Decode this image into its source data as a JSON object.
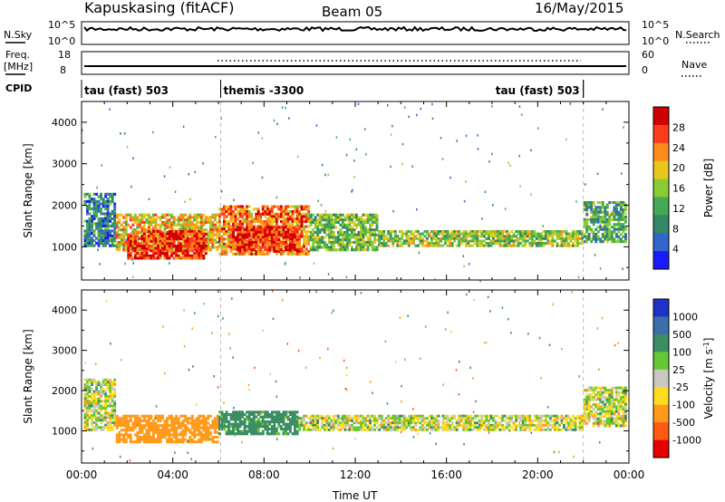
{
  "header": {
    "station": "Kapuskasing (fitACF)",
    "beam": "Beam 05",
    "date": "16/May/2015"
  },
  "left_labels": {
    "nsky": "N.Sky",
    "nsky_hi": "10^5",
    "nsky_lo": "10^0",
    "freq_1": "Freq.",
    "freq_2": "[MHz]",
    "freq_hi": "18",
    "freq_lo": "8",
    "cpid": "CPID"
  },
  "right_labels": {
    "nsearch": "N.Search",
    "nsearch_hi": "10^5",
    "nsearch_lo": "10^0",
    "nave": "Nave",
    "nave_hi": "60",
    "nave_lo": "0"
  },
  "cpid_segments": [
    {
      "start": 0,
      "end": 6.1,
      "label": "tau (fast) 503",
      "align": "left"
    },
    {
      "start": 6.1,
      "end": 22.0,
      "label": "themis -3300",
      "align": "left"
    },
    {
      "start": 6.1,
      "end": 22.0,
      "label": "tau (fast) 503",
      "align": "right"
    }
  ],
  "chart_data": [
    {
      "type": "heatmap",
      "name": "power",
      "ylabel": "Slant Range [km]",
      "xlabel": "Time UT",
      "xlim": [
        0,
        24
      ],
      "ylim": [
        200,
        4500
      ],
      "yticks": [
        1000,
        2000,
        3000,
        4000
      ],
      "xticks": [
        "00:00",
        "04:00",
        "08:00",
        "12:00",
        "16:00",
        "20:00",
        "00:00"
      ],
      "colorbar": {
        "label": "Power [dB]",
        "ticks": [
          "4",
          "8",
          "12",
          "16",
          "20",
          "24",
          "28"
        ],
        "colors": [
          "#1a1aff",
          "#3366cc",
          "#338866",
          "#44aa55",
          "#88cc33",
          "#e8c81c",
          "#ff8c1a",
          "#ff3c1a",
          "#d10000"
        ]
      },
      "regions": [
        {
          "t0": 0.1,
          "t1": 1.5,
          "r0": 1000,
          "r1": 2300,
          "value": 8
        },
        {
          "t0": 1.5,
          "t1": 6.0,
          "r0": 900,
          "r1": 1800,
          "value": 20
        },
        {
          "t0": 2.0,
          "t1": 5.5,
          "r0": 700,
          "r1": 1400,
          "value": 28
        },
        {
          "t0": 6.0,
          "t1": 10.0,
          "r0": 800,
          "r1": 2000,
          "value": 24
        },
        {
          "t0": 6.5,
          "t1": 9.5,
          "r0": 900,
          "r1": 1500,
          "value": 28
        },
        {
          "t0": 10.0,
          "t1": 13.0,
          "r0": 900,
          "r1": 1800,
          "value": 14
        },
        {
          "t0": 13.0,
          "t1": 22.0,
          "r0": 1000,
          "r1": 1400,
          "value": 16
        },
        {
          "t0": 22.0,
          "t1": 23.9,
          "r0": 1100,
          "r1": 2100,
          "value": 12
        }
      ]
    },
    {
      "type": "heatmap",
      "name": "velocity",
      "ylabel": "Slant Range [km]",
      "xlabel": "Time UT",
      "xlim": [
        0,
        24
      ],
      "ylim": [
        200,
        4500
      ],
      "yticks": [
        1000,
        2000,
        3000,
        4000
      ],
      "xticks": [
        "00:00",
        "04:00",
        "08:00",
        "12:00",
        "16:00",
        "20:00",
        "00:00"
      ],
      "colorbar": {
        "label": "Velocity [m s",
        "label_sup": "-1",
        "label_end": "]",
        "ticks": [
          "1000",
          "500",
          "100",
          "25",
          "-25",
          "-100",
          "-500",
          "-1000"
        ],
        "colors": [
          "#1e32c8",
          "#3c6eaa",
          "#3c8c64",
          "#64c832",
          "#c8c8c0",
          "#ffdc1e",
          "#ff9a1a",
          "#ff5a14",
          "#e60000"
        ]
      },
      "regions": [
        {
          "t0": 0.1,
          "t1": 1.5,
          "r0": 1000,
          "r1": 2300,
          "value": 0
        },
        {
          "t0": 1.5,
          "t1": 6.0,
          "r0": 700,
          "r1": 1400,
          "value": -300
        },
        {
          "t0": 6.0,
          "t1": 9.5,
          "r0": 900,
          "r1": 1500,
          "value": 200
        },
        {
          "t0": 9.5,
          "t1": 22.0,
          "r0": 1000,
          "r1": 1400,
          "value": 0
        },
        {
          "t0": 22.0,
          "t1": 23.9,
          "r0": 1100,
          "r1": 2100,
          "value": 0
        }
      ]
    }
  ]
}
